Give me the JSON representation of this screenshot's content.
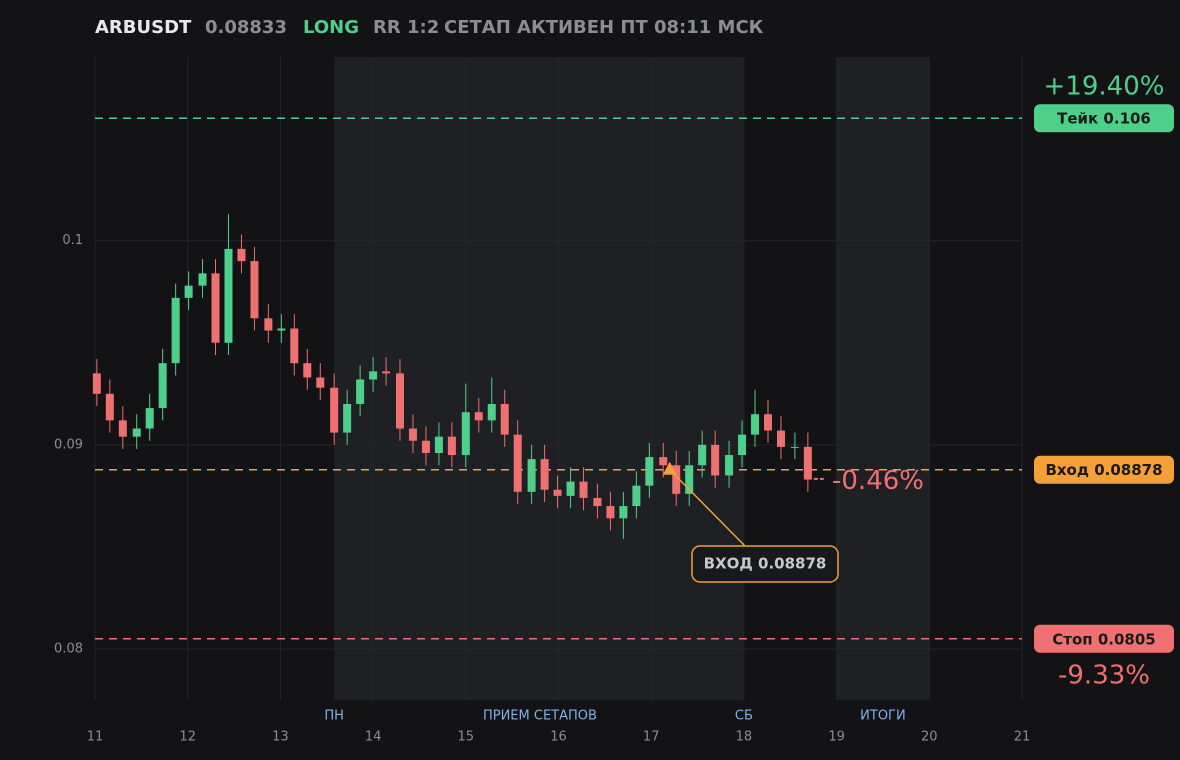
{
  "header": {
    "symbol": "ARBUSDT",
    "price": 0.08833,
    "side": "LONG",
    "rr": "RR 1:2",
    "status": "СЕТАП АКТИВЕН ПТ 08:11 МСК"
  },
  "chart_data": {
    "type": "candlestick",
    "x": [
      11.02,
      11.16,
      11.3,
      11.45,
      11.59,
      11.73,
      11.87,
      12.01,
      12.16,
      12.3,
      12.44,
      12.58,
      12.72,
      12.87,
      13.01,
      13.15,
      13.29,
      13.43,
      13.58,
      13.72,
      13.86,
      14.0,
      14.14,
      14.29,
      14.43,
      14.57,
      14.71,
      14.85,
      15.0,
      15.14,
      15.28,
      15.42,
      15.56,
      15.71,
      15.85,
      15.99,
      16.13,
      16.27,
      16.42,
      16.56,
      16.7,
      16.84,
      16.98,
      17.13,
      17.27,
      17.41,
      17.55,
      17.69,
      17.84,
      17.98,
      18.12,
      18.26,
      18.4,
      18.55,
      18.69
    ],
    "open": [
      0.0935,
      0.0925,
      0.0912,
      0.0904,
      0.0908,
      0.0918,
      0.094,
      0.0972,
      0.0978,
      0.0984,
      0.095,
      0.0996,
      0.099,
      0.0962,
      0.0956,
      0.0957,
      0.094,
      0.0933,
      0.0928,
      0.0906,
      0.092,
      0.0932,
      0.0936,
      0.0935,
      0.0908,
      0.0902,
      0.0896,
      0.0904,
      0.0895,
      0.0916,
      0.0912,
      0.092,
      0.0905,
      0.0877,
      0.0893,
      0.0878,
      0.0875,
      0.0882,
      0.0874,
      0.087,
      0.0864,
      0.087,
      0.088,
      0.0894,
      0.089,
      0.0876,
      0.089,
      0.09,
      0.0885,
      0.0895,
      0.0905,
      0.0915,
      0.0907,
      0.0899,
      0.0899
    ],
    "high": [
      0.0942,
      0.0932,
      0.0919,
      0.0915,
      0.0925,
      0.0947,
      0.0979,
      0.0985,
      0.0991,
      0.0991,
      0.1013,
      0.1003,
      0.0997,
      0.0969,
      0.0964,
      0.0964,
      0.0947,
      0.094,
      0.0935,
      0.0927,
      0.0939,
      0.0943,
      0.0943,
      0.0942,
      0.0915,
      0.0909,
      0.0911,
      0.0911,
      0.093,
      0.0923,
      0.0933,
      0.0927,
      0.0912,
      0.09,
      0.09,
      0.0885,
      0.0889,
      0.0889,
      0.0881,
      0.0877,
      0.0877,
      0.0887,
      0.0901,
      0.0901,
      0.0897,
      0.0897,
      0.0907,
      0.0907,
      0.0902,
      0.0912,
      0.0927,
      0.0922,
      0.0914,
      0.0906,
      0.0906
    ],
    "low": [
      0.0919,
      0.0906,
      0.0898,
      0.0898,
      0.0902,
      0.0912,
      0.0934,
      0.0966,
      0.0972,
      0.0944,
      0.0944,
      0.0984,
      0.0956,
      0.095,
      0.095,
      0.0934,
      0.0927,
      0.0922,
      0.09,
      0.09,
      0.0914,
      0.0926,
      0.0929,
      0.0902,
      0.0896,
      0.089,
      0.089,
      0.0889,
      0.0889,
      0.0906,
      0.0906,
      0.0899,
      0.0871,
      0.0871,
      0.0872,
      0.0869,
      0.0869,
      0.0868,
      0.0864,
      0.0858,
      0.0854,
      0.0864,
      0.0874,
      0.0884,
      0.087,
      0.087,
      0.0884,
      0.0879,
      0.0879,
      0.0889,
      0.0899,
      0.0901,
      0.0893,
      0.0893,
      0.0877
    ],
    "close": [
      0.0925,
      0.0912,
      0.0904,
      0.0908,
      0.0918,
      0.094,
      0.0972,
      0.0978,
      0.0984,
      0.095,
      0.0996,
      0.099,
      0.0962,
      0.0956,
      0.0957,
      0.094,
      0.0933,
      0.0928,
      0.0906,
      0.092,
      0.0932,
      0.0936,
      0.0935,
      0.0908,
      0.0902,
      0.0896,
      0.0904,
      0.0895,
      0.0916,
      0.0912,
      0.092,
      0.0905,
      0.0877,
      0.0893,
      0.0878,
      0.0875,
      0.0882,
      0.0874,
      0.087,
      0.0864,
      0.087,
      0.088,
      0.0894,
      0.089,
      0.0876,
      0.089,
      0.09,
      0.0885,
      0.0895,
      0.0905,
      0.0915,
      0.0907,
      0.0899,
      0.0899,
      0.0883
    ],
    "up_color": "#4fd08a",
    "down_color": "#ee7070",
    "xlim": [
      11,
      21
    ],
    "xticks": [
      11,
      12,
      13,
      14,
      15,
      16,
      17,
      18,
      19,
      20,
      21
    ],
    "ylim": [
      0.0775,
      0.109
    ],
    "yticks": [
      0.08,
      0.09,
      0.1
    ],
    "grid": true,
    "shaded": [
      [
        13.58,
        18
      ],
      [
        19,
        20
      ]
    ],
    "session_labels": [
      {
        "label": "ПН",
        "x": 13.58
      },
      {
        "label": "ПРИЕМ СЕТАПОВ",
        "x": 15.8
      },
      {
        "label": "СБ",
        "x": 18
      },
      {
        "label": "ИТОГИ",
        "x": 19.5
      }
    ],
    "levels": [
      {
        "label": "Тейк 0.106",
        "value": 0.106,
        "change": "+19.40%",
        "color": "#4fd08a"
      },
      {
        "label": "Вход 0.08878",
        "value": 0.08878,
        "change": "-0.46%",
        "color": "#f5a037"
      },
      {
        "label": "Стоп 0.0805",
        "value": 0.0805,
        "change": "-9.33%",
        "color": "#ee7070"
      }
    ],
    "annotation": {
      "text": "ВХОД 0.08878",
      "x": 17.2,
      "y": 0.08878
    }
  }
}
